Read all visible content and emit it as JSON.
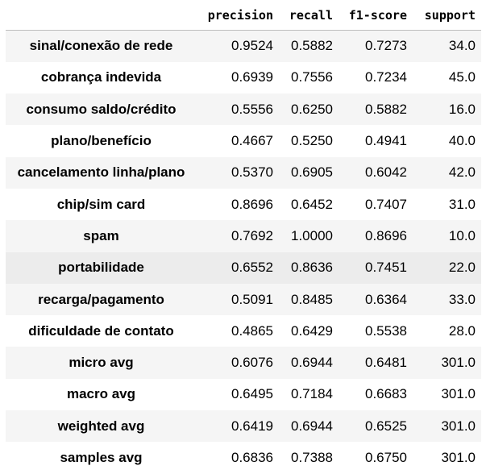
{
  "table": {
    "columns": [
      "",
      "precision",
      "recall",
      "f1-score",
      "support"
    ],
    "rows": [
      {
        "label": "sinal/conexão de rede",
        "precision": "0.9524",
        "recall": "0.5882",
        "f1": "0.7273",
        "support": "34.0"
      },
      {
        "label": "cobrança indevida",
        "precision": "0.6939",
        "recall": "0.7556",
        "f1": "0.7234",
        "support": "45.0"
      },
      {
        "label": "consumo saldo/crédito",
        "precision": "0.5556",
        "recall": "0.6250",
        "f1": "0.5882",
        "support": "16.0"
      },
      {
        "label": "plano/benefício",
        "precision": "0.4667",
        "recall": "0.5250",
        "f1": "0.4941",
        "support": "40.0"
      },
      {
        "label": "cancelamento linha/plano",
        "precision": "0.5370",
        "recall": "0.6905",
        "f1": "0.6042",
        "support": "42.0"
      },
      {
        "label": "chip/sim card",
        "precision": "0.8696",
        "recall": "0.6452",
        "f1": "0.7407",
        "support": "31.0"
      },
      {
        "label": "spam",
        "precision": "0.7692",
        "recall": "1.0000",
        "f1": "0.8696",
        "support": "10.0"
      },
      {
        "label": "portabilidade",
        "precision": "0.6552",
        "recall": "0.8636",
        "f1": "0.7451",
        "support": "22.0"
      },
      {
        "label": "recarga/pagamento",
        "precision": "0.5091",
        "recall": "0.8485",
        "f1": "0.6364",
        "support": "33.0"
      },
      {
        "label": "dificuldade de contato",
        "precision": "0.4865",
        "recall": "0.6429",
        "f1": "0.5538",
        "support": "28.0"
      },
      {
        "label": "micro avg",
        "precision": "0.6076",
        "recall": "0.6944",
        "f1": "0.6481",
        "support": "301.0"
      },
      {
        "label": "macro avg",
        "precision": "0.6495",
        "recall": "0.7184",
        "f1": "0.6683",
        "support": "301.0"
      },
      {
        "label": "weighted avg",
        "precision": "0.6419",
        "recall": "0.6944",
        "f1": "0.6525",
        "support": "301.0"
      },
      {
        "label": "samples avg",
        "precision": "0.6836",
        "recall": "0.7388",
        "f1": "0.6750",
        "support": "301.0"
      }
    ]
  }
}
